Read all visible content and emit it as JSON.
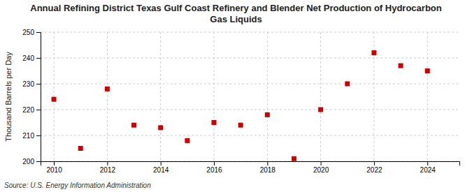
{
  "chart_data": {
    "type": "scatter",
    "title": "Annual Refining District Texas Gulf Coast Refinery and Blender Net Production of Hydrocarbon\nGas Liquids",
    "y_label": "Thousand Barrels per Day",
    "annotations": [
      "Source: U.S. Energy Information Administration"
    ],
    "x": [
      2010,
      2011,
      2012,
      2013,
      2014,
      2015,
      2016,
      2017,
      2018,
      2019,
      2020,
      2021,
      2022,
      2023,
      2024
    ],
    "values": [
      224,
      205,
      228,
      214,
      213,
      208,
      215,
      214,
      218,
      201,
      220,
      230,
      242,
      237,
      235
    ],
    "color": "#cc0000",
    "marker": "square",
    "xlim": [
      2009.5,
      2025.2
    ],
    "xticks": [
      2010,
      2012,
      2014,
      2016,
      2018,
      2020,
      2022,
      2024
    ],
    "ylim": [
      200,
      250
    ],
    "yticks": [
      200,
      210,
      220,
      230,
      240,
      250
    ],
    "grid": true
  }
}
